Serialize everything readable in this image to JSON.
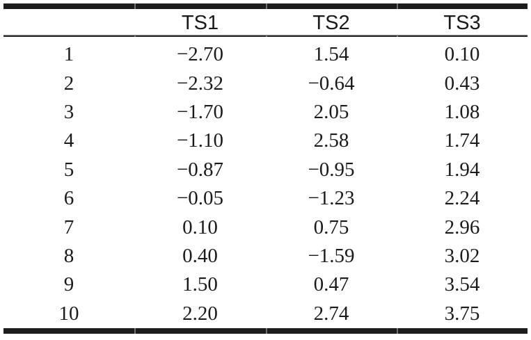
{
  "table": {
    "title": "time-series-values-table",
    "colors": {
      "rule_color": "#1d1d1d",
      "seam_color": "#7f7f7f",
      "text_color": "#1a1a1a",
      "background": "#ffffff"
    },
    "columns": [
      {
        "label": ""
      },
      {
        "label": "TS1"
      },
      {
        "label": "TS2"
      },
      {
        "label": "TS3"
      }
    ],
    "rows": [
      {
        "id": "1",
        "ts1": "−2.70",
        "ts2": "1.54",
        "ts3": "0.10"
      },
      {
        "id": "2",
        "ts1": "−2.32",
        "ts2": "−0.64",
        "ts3": "0.43"
      },
      {
        "id": "3",
        "ts1": "−1.70",
        "ts2": "2.05",
        "ts3": "1.08"
      },
      {
        "id": "4",
        "ts1": "−1.10",
        "ts2": "2.58",
        "ts3": "1.74"
      },
      {
        "id": "5",
        "ts1": "−0.87",
        "ts2": "−0.95",
        "ts3": "1.94"
      },
      {
        "id": "6",
        "ts1": "−0.05",
        "ts2": "−1.23",
        "ts3": "2.24"
      },
      {
        "id": "7",
        "ts1": "0.10",
        "ts2": "0.75",
        "ts3": "2.96"
      },
      {
        "id": "8",
        "ts1": "0.40",
        "ts2": "−1.59",
        "ts3": "3.02"
      },
      {
        "id": "9",
        "ts1": "1.50",
        "ts2": "0.47",
        "ts3": "3.54"
      },
      {
        "id": "10",
        "ts1": "2.20",
        "ts2": "2.74",
        "ts3": "3.75"
      }
    ]
  }
}
